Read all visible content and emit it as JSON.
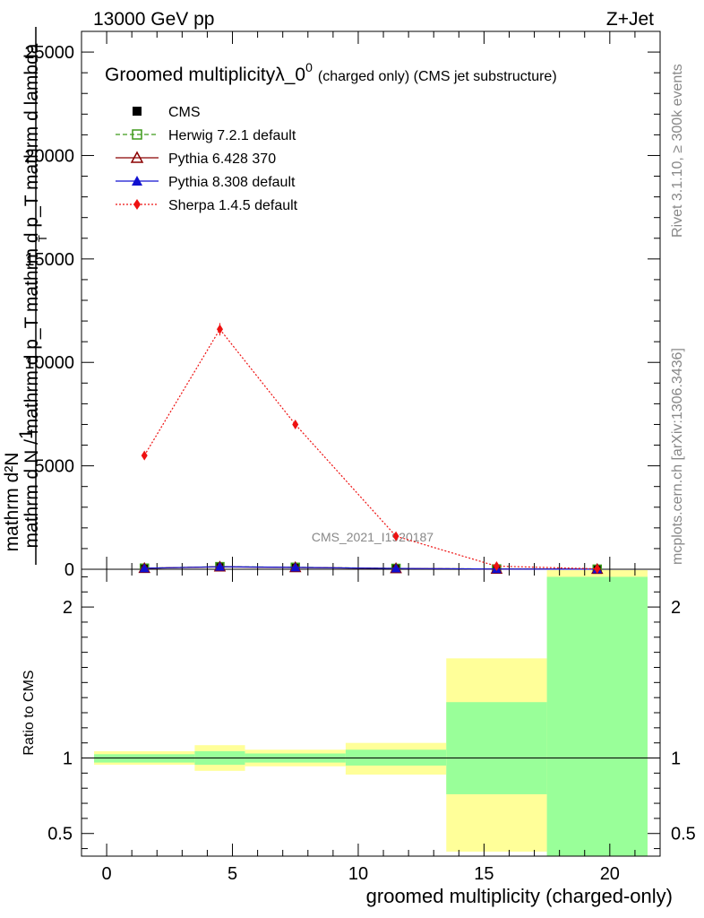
{
  "header": {
    "left": "13000 GeV pp",
    "right": "Z+Jet"
  },
  "side": {
    "rivet": "Rivet 3.1.10, ≥ 300k events",
    "mcplots": "mcplots.cern.ch [arXiv:1306.3436]"
  },
  "chart_data": [
    {
      "type": "line",
      "title_main": "Groomed multiplicityλ_0",
      "title_sup": "0",
      "title_note": "(charged only) (CMS jet substructure)",
      "ylabel_num": "1",
      "ylabel_den": "mathrm d N / mathrm d p_T mathrm d p_T mathrm d lambda",
      "ylabel_top": "mathrm d²N",
      "ylabel_sub": "T",
      "watermark": "CMS_2021_I1920187",
      "xlim": [
        -1,
        22
      ],
      "ylim": [
        0,
        26000
      ],
      "yticks": [
        0,
        5000,
        10000,
        15000,
        20000,
        25000
      ],
      "ytick_labels": [
        "0",
        "5000",
        "10000",
        "15000",
        "20000",
        "25000"
      ],
      "x": [
        1.5,
        4.5,
        7.5,
        11.5,
        15.5,
        19.5
      ],
      "series": [
        {
          "name": "CMS",
          "marker": "filled-square",
          "color": "#000000",
          "values": [
            50,
            120,
            90,
            40,
            12,
            3
          ]
        },
        {
          "name": "Herwig 7.2.1 default",
          "marker": "open-square",
          "color": "#3e9a1a",
          "line": "dashed",
          "values": [
            52,
            125,
            95,
            42,
            13,
            4
          ]
        },
        {
          "name": "Pythia 6.428 370",
          "marker": "open-triangle",
          "color": "#8b0000",
          "line": "solid",
          "values": [
            48,
            118,
            88,
            40,
            12,
            3
          ]
        },
        {
          "name": "Pythia 8.308 default",
          "marker": "filled-triangle",
          "color": "#1010d0",
          "line": "solid",
          "values": [
            51,
            122,
            92,
            41,
            12,
            3
          ]
        },
        {
          "name": "Sherpa 1.4.5 default",
          "marker": "diamond",
          "color": "#ee1111",
          "line": "dotted",
          "values": [
            5500,
            11600,
            7000,
            1600,
            150,
            20
          ],
          "errors": [
            0,
            300,
            0,
            0,
            0,
            0
          ]
        }
      ]
    },
    {
      "type": "area",
      "ylabel": "Ratio to CMS",
      "xlabel": "groomed multiplicity (charged-only)",
      "xlim": [
        -1,
        22
      ],
      "ylim": [
        0.35,
        2.25
      ],
      "xticks": [
        0,
        5,
        10,
        15,
        20
      ],
      "xtick_labels": [
        "0",
        "5",
        "10",
        "15",
        "20"
      ],
      "yticks": [
        0.5,
        1,
        2
      ],
      "ytick_labels": [
        "0.5",
        "1",
        "2"
      ],
      "reference": 1,
      "bins": [
        {
          "x0": -0.5,
          "x1": 3.5,
          "green": [
            0.97,
            1.025
          ],
          "yellow": [
            0.955,
            1.045
          ]
        },
        {
          "x0": 3.5,
          "x1": 5.5,
          "green": [
            0.955,
            1.045
          ],
          "yellow": [
            0.915,
            1.085
          ]
        },
        {
          "x0": 5.5,
          "x1": 9.5,
          "green": [
            0.97,
            1.03
          ],
          "yellow": [
            0.945,
            1.055
          ]
        },
        {
          "x0": 9.5,
          "x1": 13.5,
          "green": [
            0.95,
            1.055
          ],
          "yellow": [
            0.89,
            1.1
          ]
        },
        {
          "x0": 13.5,
          "x1": 17.5,
          "green": [
            0.76,
            1.37
          ],
          "yellow": [
            0.38,
            1.66
          ]
        },
        {
          "x0": 17.5,
          "x1": 21.5,
          "green": [
            0.35,
            2.2
          ],
          "yellow": [
            0.35,
            2.25
          ]
        }
      ]
    }
  ]
}
